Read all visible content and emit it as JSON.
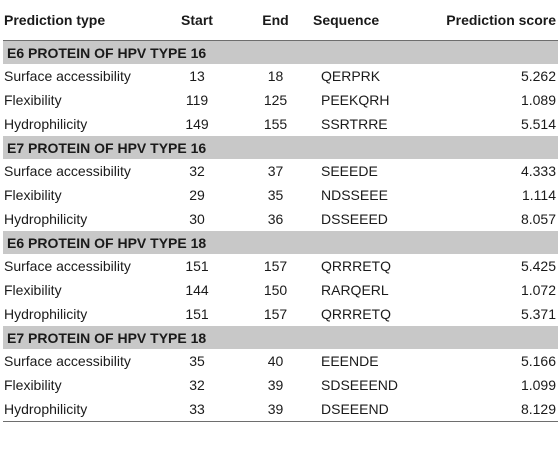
{
  "headers": {
    "type": "Prediction type",
    "start": "Start",
    "end": "End",
    "sequence": "Sequence",
    "score": "Prediction score"
  },
  "sections": [
    {
      "title": "E6 PROTEIN OF HPV TYPE 16",
      "rows": [
        {
          "type": "Surface accessibility",
          "start": "13",
          "end": "18",
          "sequence": "QERPRK",
          "score": "5.262"
        },
        {
          "type": "Flexibility",
          "start": "119",
          "end": "125",
          "sequence": "PEEKQRH",
          "score": "1.089"
        },
        {
          "type": "Hydrophilicity",
          "start": "149",
          "end": "155",
          "sequence": "SSRTRRE",
          "score": "5.514"
        }
      ]
    },
    {
      "title": "E7 PROTEIN OF HPV TYPE 16",
      "rows": [
        {
          "type": "Surface accessibility",
          "start": "32",
          "end": "37",
          "sequence": "SEEEDE",
          "score": "4.333"
        },
        {
          "type": "Flexibility",
          "start": "29",
          "end": "35",
          "sequence": "NDSSEEE",
          "score": "1.114"
        },
        {
          "type": "Hydrophilicity",
          "start": "30",
          "end": "36",
          "sequence": "DSSEEED",
          "score": "8.057"
        }
      ]
    },
    {
      "title": "E6 PROTEIN OF HPV TYPE 18",
      "rows": [
        {
          "type": "Surface accessibility",
          "start": "151",
          "end": "157",
          "sequence": "QRRRETQ",
          "score": "5.425"
        },
        {
          "type": "Flexibility",
          "start": "144",
          "end": "150",
          "sequence": "RARQERL",
          "score": "1.072"
        },
        {
          "type": "Hydrophilicity",
          "start": "151",
          "end": "157",
          "sequence": "QRRRETQ",
          "score": "5.371"
        }
      ]
    },
    {
      "title": "E7 PROTEIN OF HPV TYPE 18",
      "rows": [
        {
          "type": "Surface accessibility",
          "start": "35",
          "end": "40",
          "sequence": "EEENDE",
          "score": "5.166"
        },
        {
          "type": "Flexibility",
          "start": "32",
          "end": "39",
          "sequence": "SDSEEEND",
          "score": "1.099"
        },
        {
          "type": "Hydrophilicity",
          "start": "33",
          "end": "39",
          "sequence": "DSEEEND",
          "score": "8.129"
        }
      ]
    }
  ],
  "colors": {
    "section_band": "#c8c8c8",
    "rule": "#6e6e6e"
  }
}
